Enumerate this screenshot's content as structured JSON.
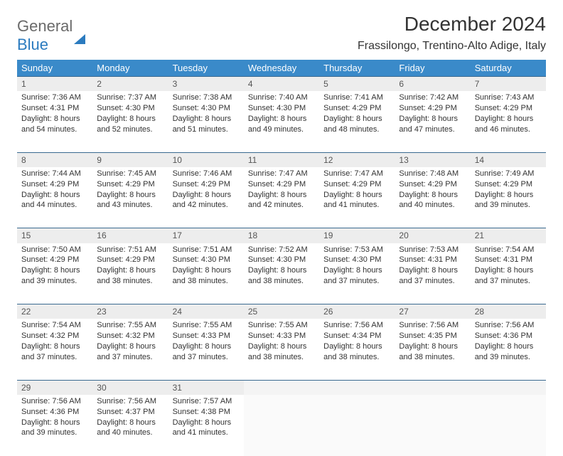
{
  "logo": {
    "word1": "General",
    "word2": "Blue"
  },
  "title": "December 2024",
  "location": "Frassilongo, Trentino-Alto Adige, Italy",
  "colors": {
    "header_bg": "#3a8ac9",
    "header_text": "#ffffff",
    "daynum_bg": "#ededed",
    "row_border": "#3a6a90",
    "logo_gray": "#6a6a6a",
    "logo_blue": "#2b7bbf"
  },
  "weekdays": [
    "Sunday",
    "Monday",
    "Tuesday",
    "Wednesday",
    "Thursday",
    "Friday",
    "Saturday"
  ],
  "weeks": [
    [
      {
        "n": "1",
        "sr": "Sunrise: 7:36 AM",
        "ss": "Sunset: 4:31 PM",
        "d1": "Daylight: 8 hours",
        "d2": "and 54 minutes."
      },
      {
        "n": "2",
        "sr": "Sunrise: 7:37 AM",
        "ss": "Sunset: 4:30 PM",
        "d1": "Daylight: 8 hours",
        "d2": "and 52 minutes."
      },
      {
        "n": "3",
        "sr": "Sunrise: 7:38 AM",
        "ss": "Sunset: 4:30 PM",
        "d1": "Daylight: 8 hours",
        "d2": "and 51 minutes."
      },
      {
        "n": "4",
        "sr": "Sunrise: 7:40 AM",
        "ss": "Sunset: 4:30 PM",
        "d1": "Daylight: 8 hours",
        "d2": "and 49 minutes."
      },
      {
        "n": "5",
        "sr": "Sunrise: 7:41 AM",
        "ss": "Sunset: 4:29 PM",
        "d1": "Daylight: 8 hours",
        "d2": "and 48 minutes."
      },
      {
        "n": "6",
        "sr": "Sunrise: 7:42 AM",
        "ss": "Sunset: 4:29 PM",
        "d1": "Daylight: 8 hours",
        "d2": "and 47 minutes."
      },
      {
        "n": "7",
        "sr": "Sunrise: 7:43 AM",
        "ss": "Sunset: 4:29 PM",
        "d1": "Daylight: 8 hours",
        "d2": "and 46 minutes."
      }
    ],
    [
      {
        "n": "8",
        "sr": "Sunrise: 7:44 AM",
        "ss": "Sunset: 4:29 PM",
        "d1": "Daylight: 8 hours",
        "d2": "and 44 minutes."
      },
      {
        "n": "9",
        "sr": "Sunrise: 7:45 AM",
        "ss": "Sunset: 4:29 PM",
        "d1": "Daylight: 8 hours",
        "d2": "and 43 minutes."
      },
      {
        "n": "10",
        "sr": "Sunrise: 7:46 AM",
        "ss": "Sunset: 4:29 PM",
        "d1": "Daylight: 8 hours",
        "d2": "and 42 minutes."
      },
      {
        "n": "11",
        "sr": "Sunrise: 7:47 AM",
        "ss": "Sunset: 4:29 PM",
        "d1": "Daylight: 8 hours",
        "d2": "and 42 minutes."
      },
      {
        "n": "12",
        "sr": "Sunrise: 7:47 AM",
        "ss": "Sunset: 4:29 PM",
        "d1": "Daylight: 8 hours",
        "d2": "and 41 minutes."
      },
      {
        "n": "13",
        "sr": "Sunrise: 7:48 AM",
        "ss": "Sunset: 4:29 PM",
        "d1": "Daylight: 8 hours",
        "d2": "and 40 minutes."
      },
      {
        "n": "14",
        "sr": "Sunrise: 7:49 AM",
        "ss": "Sunset: 4:29 PM",
        "d1": "Daylight: 8 hours",
        "d2": "and 39 minutes."
      }
    ],
    [
      {
        "n": "15",
        "sr": "Sunrise: 7:50 AM",
        "ss": "Sunset: 4:29 PM",
        "d1": "Daylight: 8 hours",
        "d2": "and 39 minutes."
      },
      {
        "n": "16",
        "sr": "Sunrise: 7:51 AM",
        "ss": "Sunset: 4:29 PM",
        "d1": "Daylight: 8 hours",
        "d2": "and 38 minutes."
      },
      {
        "n": "17",
        "sr": "Sunrise: 7:51 AM",
        "ss": "Sunset: 4:30 PM",
        "d1": "Daylight: 8 hours",
        "d2": "and 38 minutes."
      },
      {
        "n": "18",
        "sr": "Sunrise: 7:52 AM",
        "ss": "Sunset: 4:30 PM",
        "d1": "Daylight: 8 hours",
        "d2": "and 38 minutes."
      },
      {
        "n": "19",
        "sr": "Sunrise: 7:53 AM",
        "ss": "Sunset: 4:30 PM",
        "d1": "Daylight: 8 hours",
        "d2": "and 37 minutes."
      },
      {
        "n": "20",
        "sr": "Sunrise: 7:53 AM",
        "ss": "Sunset: 4:31 PM",
        "d1": "Daylight: 8 hours",
        "d2": "and 37 minutes."
      },
      {
        "n": "21",
        "sr": "Sunrise: 7:54 AM",
        "ss": "Sunset: 4:31 PM",
        "d1": "Daylight: 8 hours",
        "d2": "and 37 minutes."
      }
    ],
    [
      {
        "n": "22",
        "sr": "Sunrise: 7:54 AM",
        "ss": "Sunset: 4:32 PM",
        "d1": "Daylight: 8 hours",
        "d2": "and 37 minutes."
      },
      {
        "n": "23",
        "sr": "Sunrise: 7:55 AM",
        "ss": "Sunset: 4:32 PM",
        "d1": "Daylight: 8 hours",
        "d2": "and 37 minutes."
      },
      {
        "n": "24",
        "sr": "Sunrise: 7:55 AM",
        "ss": "Sunset: 4:33 PM",
        "d1": "Daylight: 8 hours",
        "d2": "and 37 minutes."
      },
      {
        "n": "25",
        "sr": "Sunrise: 7:55 AM",
        "ss": "Sunset: 4:33 PM",
        "d1": "Daylight: 8 hours",
        "d2": "and 38 minutes."
      },
      {
        "n": "26",
        "sr": "Sunrise: 7:56 AM",
        "ss": "Sunset: 4:34 PM",
        "d1": "Daylight: 8 hours",
        "d2": "and 38 minutes."
      },
      {
        "n": "27",
        "sr": "Sunrise: 7:56 AM",
        "ss": "Sunset: 4:35 PM",
        "d1": "Daylight: 8 hours",
        "d2": "and 38 minutes."
      },
      {
        "n": "28",
        "sr": "Sunrise: 7:56 AM",
        "ss": "Sunset: 4:36 PM",
        "d1": "Daylight: 8 hours",
        "d2": "and 39 minutes."
      }
    ],
    [
      {
        "n": "29",
        "sr": "Sunrise: 7:56 AM",
        "ss": "Sunset: 4:36 PM",
        "d1": "Daylight: 8 hours",
        "d2": "and 39 minutes."
      },
      {
        "n": "30",
        "sr": "Sunrise: 7:56 AM",
        "ss": "Sunset: 4:37 PM",
        "d1": "Daylight: 8 hours",
        "d2": "and 40 minutes."
      },
      {
        "n": "31",
        "sr": "Sunrise: 7:57 AM",
        "ss": "Sunset: 4:38 PM",
        "d1": "Daylight: 8 hours",
        "d2": "and 41 minutes."
      },
      {
        "blank": true
      },
      {
        "blank": true
      },
      {
        "blank": true
      },
      {
        "blank": true
      }
    ]
  ]
}
